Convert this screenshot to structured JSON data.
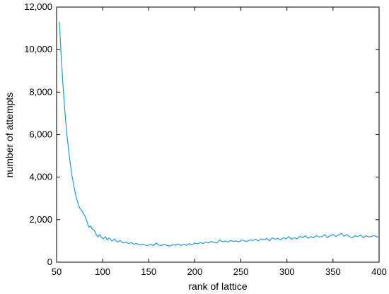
{
  "chart_data": {
    "type": "line",
    "title": "",
    "xlabel": "rank of lattice",
    "ylabel": "number of attempts",
    "xlim": [
      50,
      400
    ],
    "ylim": [
      0,
      12000
    ],
    "x_ticks": [
      50,
      100,
      150,
      200,
      250,
      300,
      350,
      400
    ],
    "x_tick_labels": [
      "50",
      "100",
      "150",
      "200",
      "250",
      "300",
      "350",
      "400"
    ],
    "y_ticks": [
      0,
      2000,
      4000,
      6000,
      8000,
      10000,
      12000
    ],
    "y_tick_labels": [
      "0",
      "2,000",
      "4,000",
      "6,000",
      "8,000",
      "10,000",
      "12,000"
    ],
    "grid": false,
    "legend": "none",
    "line_color": "#1f9bd1",
    "series": [
      {
        "x": [
          53,
          55,
          57,
          59,
          61,
          63,
          65,
          67,
          69,
          71,
          73,
          75,
          77,
          79,
          81,
          83,
          85,
          87,
          89,
          91,
          93,
          95,
          97,
          99,
          101,
          103,
          105,
          107,
          110,
          113,
          116,
          119,
          122,
          125,
          128,
          131,
          134,
          137,
          140,
          143,
          146,
          149,
          152,
          155,
          158,
          161,
          164,
          167,
          170,
          173,
          176,
          179,
          182,
          185,
          188,
          191,
          194,
          197,
          200,
          203,
          206,
          209,
          212,
          215,
          218,
          221,
          224,
          227,
          230,
          233,
          236,
          239,
          242,
          245,
          248,
          251,
          254,
          257,
          260,
          263,
          266,
          269,
          272,
          275,
          278,
          281,
          284,
          287,
          290,
          293,
          296,
          299,
          302,
          305,
          308,
          311,
          314,
          317,
          320,
          323,
          326,
          329,
          332,
          335,
          338,
          341,
          344,
          347,
          350,
          353,
          356,
          359,
          362,
          365,
          368,
          371,
          374,
          377,
          380,
          383,
          386,
          389,
          392,
          395,
          398,
          400
        ],
        "y": [
          11300,
          9700,
          8300,
          7100,
          6100,
          5300,
          4600,
          4000,
          3500,
          3100,
          2800,
          2550,
          2450,
          2300,
          2150,
          1900,
          1650,
          1700,
          1550,
          1500,
          1300,
          1200,
          1300,
          1150,
          1100,
          1200,
          1050,
          1150,
          1000,
          1080,
          950,
          1020,
          900,
          950,
          880,
          920,
          850,
          880,
          820,
          850,
          800,
          780,
          850,
          770,
          900,
          800,
          780,
          850,
          780,
          760,
          820,
          800,
          860,
          780,
          850,
          800,
          870,
          820,
          900,
          860,
          920,
          880,
          950,
          900,
          980,
          920,
          900,
          1050,
          960,
          1000,
          950,
          1020,
          980,
          1000,
          960,
          1050,
          1000,
          980,
          1050,
          1020,
          1080,
          1000,
          1100,
          1050,
          1120,
          1000,
          1150,
          1080,
          1120,
          1050,
          1150,
          1100,
          1200,
          1080,
          1150,
          1100,
          1220,
          1150,
          1250,
          1120,
          1200,
          1150,
          1250,
          1180,
          1200,
          1300,
          1150,
          1250,
          1300,
          1200,
          1280,
          1350,
          1220,
          1300,
          1200,
          1150,
          1250,
          1200,
          1280,
          1150,
          1250,
          1180,
          1220,
          1250,
          1180,
          1200
        ]
      }
    ]
  }
}
